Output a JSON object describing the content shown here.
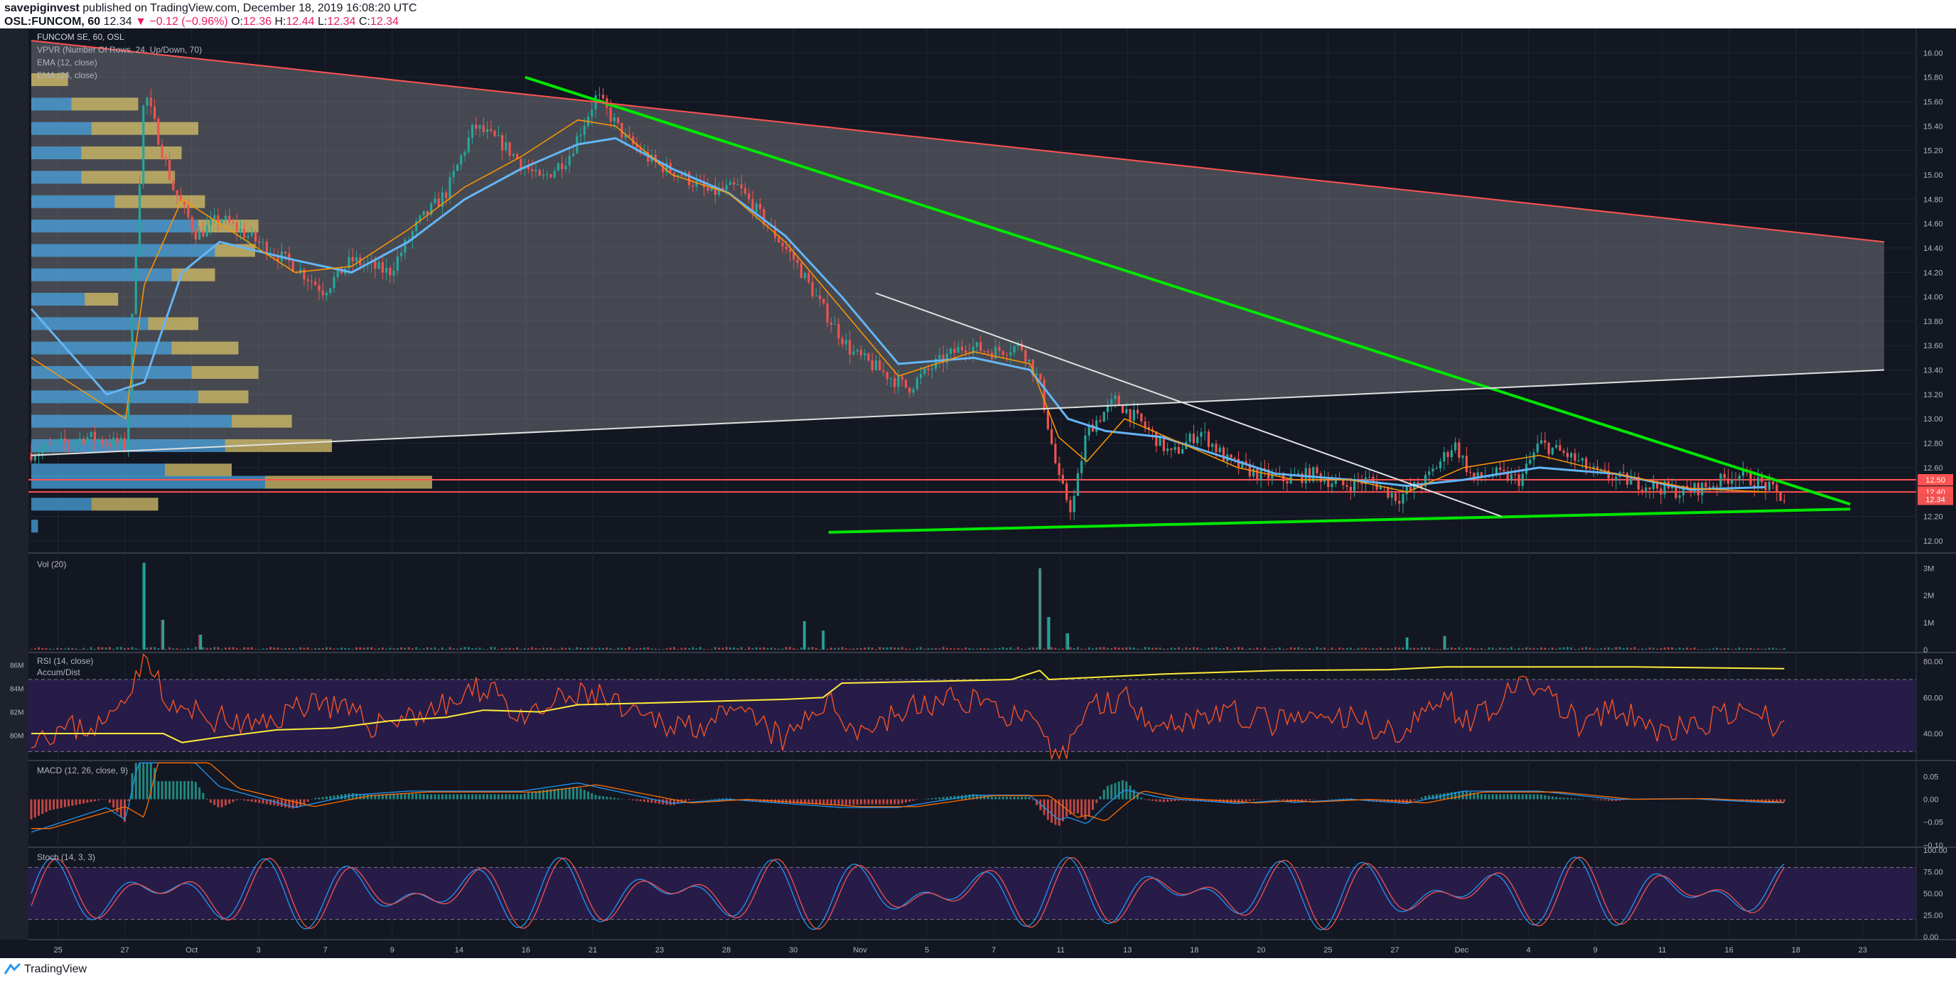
{
  "header": {
    "publisher": "savepiginvest",
    "published_text": "published on TradingView.com, December 18, 2019 16:08:20 UTC",
    "symbol": "OSL:FUNCOM, 60",
    "last": "12.34",
    "change": "▼ −0.12 (−0.96%)",
    "o_label": "O:",
    "o_value": "12.36",
    "h_label": "H:",
    "h_value": "12.44",
    "l_label": "L:",
    "l_value": "12.34",
    "c_label": "C:",
    "c_value": "12.34"
  },
  "legend": {
    "title": "FUNCOM SE, 60, OSL",
    "vpvr": "VPVR (Number Of Rows, 24, Up/Down, 70)",
    "ema12": "EMA (12, close)",
    "ema26": "EMA (26, close)",
    "vol": "Vol (20)",
    "rsi": "RSI (14, close)",
    "accum": "Accum/Dist",
    "macd": "MACD (12, 26, close, 9)",
    "stoch": "Stoch (14, 3, 3)"
  },
  "brand": {
    "name": "TradingView"
  },
  "colors": {
    "background": "#131722",
    "up": "#26a69a",
    "down": "#ef5350",
    "ema12": "#ff9800",
    "ema26": "#64b5f6",
    "trend_green": "#00e600",
    "support": "#ff5252",
    "rsi_line": "#ff5722",
    "accum_line": "#ffeb3b",
    "band": "#2a1d4d"
  },
  "chart_data": [
    {
      "panel": "price",
      "type": "candlestick",
      "y_ticks": [
        "16.00",
        "15.80",
        "15.60",
        "15.40",
        "15.20",
        "15.00",
        "14.80",
        "14.60",
        "14.40",
        "14.20",
        "14.00",
        "13.80",
        "13.60",
        "13.40",
        "13.20",
        "13.00",
        "12.80",
        "12.60",
        "12.40",
        "12.20",
        "12.00"
      ],
      "ylim": [
        11.9,
        16.2
      ],
      "x_ticks": [
        "25",
        "27",
        "Oct",
        "3",
        "7",
        "9",
        "14",
        "16",
        "21",
        "23",
        "28",
        "30",
        "Nov",
        "5",
        "7",
        "11",
        "13",
        "18",
        "20",
        "25",
        "27",
        "Dec",
        "4",
        "9",
        "11",
        "16",
        "18",
        "23"
      ],
      "price_labels": [
        {
          "value": 12.5,
          "text": "12.50",
          "color": "#ff5252"
        },
        {
          "value": 12.4,
          "text": "12.40",
          "color": "#ff5252"
        },
        {
          "value": 12.34,
          "text": "12.34",
          "color": "#ef5350"
        }
      ],
      "close_path": [
        [
          0,
          12.72
        ],
        [
          0.03,
          12.85
        ],
        [
          0.05,
          12.78
        ],
        [
          0.06,
          15.7
        ],
        [
          0.075,
          14.9
        ],
        [
          0.088,
          14.5
        ],
        [
          0.1,
          14.65
        ],
        [
          0.12,
          14.45
        ],
        [
          0.14,
          14.25
        ],
        [
          0.155,
          14.05
        ],
        [
          0.17,
          14.3
        ],
        [
          0.19,
          14.2
        ],
        [
          0.205,
          14.6
        ],
        [
          0.22,
          14.85
        ],
        [
          0.235,
          15.4
        ],
        [
          0.25,
          15.25
        ],
        [
          0.27,
          14.95
        ],
        [
          0.285,
          15.15
        ],
        [
          0.3,
          15.65
        ],
        [
          0.315,
          15.3
        ],
        [
          0.33,
          15.1
        ],
        [
          0.345,
          15.0
        ],
        [
          0.36,
          14.85
        ],
        [
          0.375,
          14.9
        ],
        [
          0.39,
          14.6
        ],
        [
          0.405,
          14.3
        ],
        [
          0.42,
          13.9
        ],
        [
          0.435,
          13.55
        ],
        [
          0.45,
          13.4
        ],
        [
          0.465,
          13.25
        ],
        [
          0.48,
          13.45
        ],
        [
          0.495,
          13.6
        ],
        [
          0.51,
          13.55
        ],
        [
          0.525,
          13.6
        ],
        [
          0.535,
          13.3
        ],
        [
          0.545,
          12.5
        ],
        [
          0.552,
          12.25
        ],
        [
          0.56,
          12.9
        ],
        [
          0.575,
          13.15
        ],
        [
          0.59,
          12.95
        ],
        [
          0.605,
          12.7
        ],
        [
          0.62,
          12.9
        ],
        [
          0.635,
          12.65
        ],
        [
          0.65,
          12.55
        ],
        [
          0.665,
          12.5
        ],
        [
          0.68,
          12.55
        ],
        [
          0.695,
          12.45
        ],
        [
          0.71,
          12.5
        ],
        [
          0.725,
          12.35
        ],
        [
          0.74,
          12.5
        ],
        [
          0.755,
          12.8
        ],
        [
          0.765,
          12.5
        ],
        [
          0.775,
          12.55
        ],
        [
          0.79,
          12.5
        ],
        [
          0.8,
          12.8
        ],
        [
          0.815,
          12.7
        ],
        [
          0.83,
          12.55
        ],
        [
          0.845,
          12.5
        ],
        [
          0.86,
          12.45
        ],
        [
          0.875,
          12.4
        ],
        [
          0.89,
          12.45
        ],
        [
          0.905,
          12.55
        ],
        [
          0.92,
          12.45
        ],
        [
          0.93,
          12.34
        ]
      ],
      "ema26_path": [
        [
          0,
          13.9
        ],
        [
          0.04,
          13.2
        ],
        [
          0.06,
          13.3
        ],
        [
          0.08,
          14.2
        ],
        [
          0.1,
          14.45
        ],
        [
          0.14,
          14.3
        ],
        [
          0.17,
          14.2
        ],
        [
          0.2,
          14.45
        ],
        [
          0.23,
          14.8
        ],
        [
          0.26,
          15.05
        ],
        [
          0.29,
          15.25
        ],
        [
          0.31,
          15.3
        ],
        [
          0.34,
          15.05
        ],
        [
          0.37,
          14.85
        ],
        [
          0.4,
          14.5
        ],
        [
          0.43,
          14.0
        ],
        [
          0.46,
          13.45
        ],
        [
          0.5,
          13.5
        ],
        [
          0.53,
          13.4
        ],
        [
          0.55,
          13.0
        ],
        [
          0.57,
          12.9
        ],
        [
          0.6,
          12.85
        ],
        [
          0.63,
          12.7
        ],
        [
          0.66,
          12.55
        ],
        [
          0.7,
          12.5
        ],
        [
          0.73,
          12.45
        ],
        [
          0.76,
          12.5
        ],
        [
          0.8,
          12.6
        ],
        [
          0.84,
          12.55
        ],
        [
          0.88,
          12.42
        ],
        [
          0.92,
          12.44
        ]
      ],
      "ema12_path": [
        [
          0,
          13.5
        ],
        [
          0.05,
          13.0
        ],
        [
          0.06,
          14.1
        ],
        [
          0.08,
          14.8
        ],
        [
          0.1,
          14.6
        ],
        [
          0.14,
          14.2
        ],
        [
          0.17,
          14.25
        ],
        [
          0.2,
          14.55
        ],
        [
          0.23,
          14.9
        ],
        [
          0.26,
          15.15
        ],
        [
          0.29,
          15.45
        ],
        [
          0.31,
          15.4
        ],
        [
          0.34,
          15.0
        ],
        [
          0.37,
          14.85
        ],
        [
          0.4,
          14.45
        ],
        [
          0.43,
          13.9
        ],
        [
          0.46,
          13.35
        ],
        [
          0.5,
          13.55
        ],
        [
          0.53,
          13.45
        ],
        [
          0.545,
          12.85
        ],
        [
          0.56,
          12.65
        ],
        [
          0.58,
          13.0
        ],
        [
          0.61,
          12.8
        ],
        [
          0.64,
          12.6
        ],
        [
          0.67,
          12.5
        ],
        [
          0.7,
          12.5
        ],
        [
          0.73,
          12.4
        ],
        [
          0.76,
          12.6
        ],
        [
          0.8,
          12.7
        ],
        [
          0.84,
          12.55
        ],
        [
          0.88,
          12.43
        ],
        [
          0.92,
          12.4
        ]
      ],
      "trendlines": [
        {
          "name": "upper-falling",
          "color": "#00e600",
          "from": [
            0.262,
            15.8
          ],
          "to": [
            0.965,
            12.3
          ]
        },
        {
          "name": "lower-rising",
          "color": "#00e600",
          "from": [
            0.423,
            12.07
          ],
          "to": [
            0.965,
            12.26
          ]
        },
        {
          "name": "short-falling",
          "color": "#e0e0e0",
          "from": [
            0.448,
            14.03
          ],
          "to": [
            0.78,
            12.2
          ]
        },
        {
          "name": "channel-top",
          "color": "#ff5252",
          "from": [
            0.0,
            16.1
          ],
          "to": [
            0.983,
            14.45
          ]
        },
        {
          "name": "channel-bottom",
          "color": "#e0e0e0",
          "from": [
            0.0,
            12.7
          ],
          "to": [
            0.983,
            13.4
          ]
        }
      ],
      "horizontal_levels": [
        12.5,
        12.4
      ],
      "vpvr_rows": [
        {
          "price": 15.78,
          "up": 0.0,
          "down": 0.11
        },
        {
          "price": 15.58,
          "up": 0.12,
          "down": 0.2
        },
        {
          "price": 15.38,
          "up": 0.18,
          "down": 0.32
        },
        {
          "price": 15.18,
          "up": 0.15,
          "down": 0.3
        },
        {
          "price": 14.98,
          "up": 0.15,
          "down": 0.28
        },
        {
          "price": 14.78,
          "up": 0.25,
          "down": 0.27
        },
        {
          "price": 14.58,
          "up": 0.5,
          "down": 0.18
        },
        {
          "price": 14.38,
          "up": 0.55,
          "down": 0.12
        },
        {
          "price": 14.18,
          "up": 0.42,
          "down": 0.13
        },
        {
          "price": 13.98,
          "up": 0.16,
          "down": 0.1
        },
        {
          "price": 13.78,
          "up": 0.35,
          "down": 0.15
        },
        {
          "price": 13.58,
          "up": 0.42,
          "down": 0.2
        },
        {
          "price": 13.38,
          "up": 0.48,
          "down": 0.2
        },
        {
          "price": 13.18,
          "up": 0.5,
          "down": 0.15
        },
        {
          "price": 12.98,
          "up": 0.6,
          "down": 0.18
        },
        {
          "price": 12.78,
          "up": 0.58,
          "down": 0.32
        },
        {
          "price": 12.58,
          "up": 0.4,
          "down": 0.2
        },
        {
          "price": 12.48,
          "up": 0.7,
          "down": 0.5
        },
        {
          "price": 12.3,
          "up": 0.18,
          "down": 0.2
        },
        {
          "price": 12.12,
          "up": 0.02,
          "down": 0.0
        }
      ]
    },
    {
      "panel": "volume",
      "type": "bar",
      "y_ticks": [
        "3M",
        "2M",
        "1M",
        "0"
      ],
      "ylim": [
        0,
        3.3
      ],
      "spikes": [
        [
          0.06,
          3.2
        ],
        [
          0.07,
          1.1
        ],
        [
          0.09,
          0.55
        ],
        [
          0.41,
          1.05
        ],
        [
          0.42,
          0.7
        ],
        [
          0.535,
          3.0
        ],
        [
          0.54,
          1.2
        ],
        [
          0.55,
          0.6
        ],
        [
          0.73,
          0.45
        ],
        [
          0.75,
          0.5
        ]
      ]
    },
    {
      "panel": "rsi",
      "type": "line",
      "y_ticks": [
        "80.00",
        "60.00",
        "40.00"
      ],
      "accum_ticks": [
        "86M",
        "84M",
        "82M",
        "80M"
      ],
      "ylim": [
        25,
        85
      ],
      "bands": [
        30,
        70
      ],
      "rsi_path": [
        [
          0,
          40
        ],
        [
          0.04,
          45
        ],
        [
          0.06,
          82
        ],
        [
          0.065,
          80
        ],
        [
          0.07,
          55
        ],
        [
          0.09,
          50
        ],
        [
          0.12,
          43
        ],
        [
          0.15,
          60
        ],
        [
          0.18,
          45
        ],
        [
          0.22,
          55
        ],
        [
          0.245,
          68
        ],
        [
          0.26,
          45
        ],
        [
          0.28,
          58
        ],
        [
          0.3,
          62
        ],
        [
          0.32,
          48
        ],
        [
          0.35,
          45
        ],
        [
          0.38,
          50
        ],
        [
          0.4,
          35
        ],
        [
          0.42,
          58
        ],
        [
          0.44,
          42
        ],
        [
          0.47,
          55
        ],
        [
          0.5,
          60
        ],
        [
          0.53,
          45
        ],
        [
          0.545,
          22
        ],
        [
          0.56,
          55
        ],
        [
          0.58,
          60
        ],
        [
          0.6,
          45
        ],
        [
          0.63,
          52
        ],
        [
          0.66,
          46
        ],
        [
          0.7,
          48
        ],
        [
          0.73,
          40
        ],
        [
          0.75,
          65
        ],
        [
          0.76,
          45
        ],
        [
          0.78,
          60
        ],
        [
          0.8,
          68
        ],
        [
          0.82,
          45
        ],
        [
          0.84,
          52
        ],
        [
          0.87,
          40
        ],
        [
          0.9,
          50
        ],
        [
          0.92,
          48
        ],
        [
          0.93,
          42
        ]
      ],
      "accum_path": [
        [
          0,
          40
        ],
        [
          0.07,
          40
        ],
        [
          0.08,
          35
        ],
        [
          0.1,
          38
        ],
        [
          0.13,
          42
        ],
        [
          0.16,
          43
        ],
        [
          0.19,
          47
        ],
        [
          0.22,
          49
        ],
        [
          0.24,
          53
        ],
        [
          0.27,
          52
        ],
        [
          0.29,
          56
        ],
        [
          0.33,
          57
        ],
        [
          0.4,
          59
        ],
        [
          0.42,
          60
        ],
        [
          0.43,
          68
        ],
        [
          0.48,
          69
        ],
        [
          0.52,
          70
        ],
        [
          0.535,
          75
        ],
        [
          0.54,
          70
        ],
        [
          0.6,
          73
        ],
        [
          0.66,
          75
        ],
        [
          0.72,
          75.5
        ],
        [
          0.75,
          77
        ],
        [
          0.85,
          77
        ],
        [
          0.93,
          76
        ]
      ]
    },
    {
      "panel": "macd",
      "type": "histogram",
      "y_ticks": [
        "0.05",
        "0.00",
        "−0.05",
        "−0.10"
      ],
      "ylim": [
        -0.105,
        0.085
      ]
    },
    {
      "panel": "stoch",
      "type": "line",
      "y_ticks": [
        "100.00",
        "75.00",
        "50.00",
        "25.00",
        "0.00"
      ],
      "ylim": [
        0,
        100
      ],
      "bands": [
        20,
        80
      ]
    }
  ]
}
